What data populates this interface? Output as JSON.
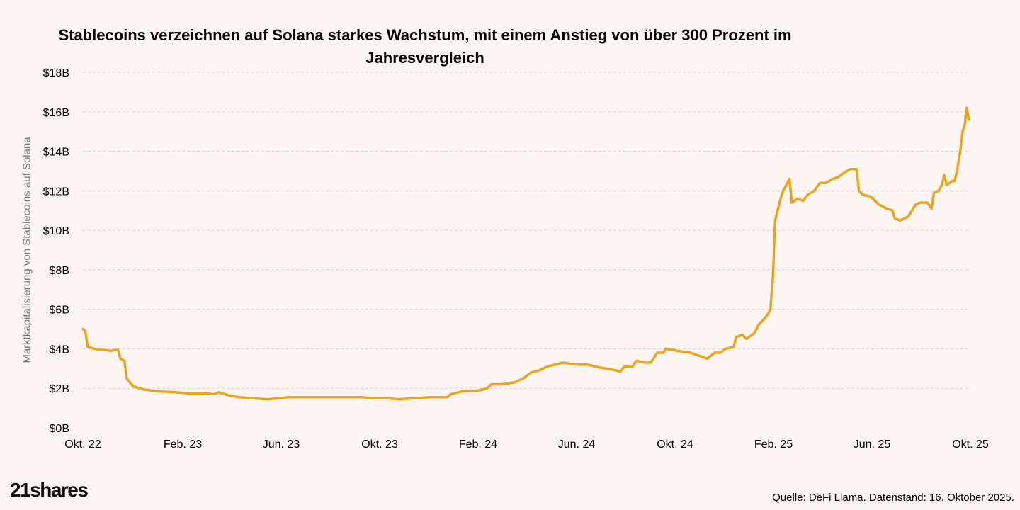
{
  "title_line1": "Stablecoins verzeichnen auf Solana starkes Wachstum, mit einem Anstieg von über 300 Prozent im",
  "title_line2": "Jahresvergleich",
  "logo_text": "21shares",
  "source_text": "Quelle: DeFi Llama. Datenstand: 16. Oktober 2025.",
  "colors": {
    "line": "#eaa520",
    "grid": "#d9d4d0",
    "background": "#fdf5f1"
  },
  "chart_data": {
    "type": "line",
    "title": "Stablecoins verzeichnen auf Solana starkes Wachstum, mit einem Anstieg von über 300 Prozent im Jahresvergleich",
    "xlabel": "",
    "ylabel": "Marktkapitalisierung von Stablecoins auf Solana",
    "unit": "USD billion",
    "ylim": [
      0,
      18
    ],
    "yticks": [
      0,
      2,
      4,
      6,
      8,
      10,
      12,
      14,
      16,
      18
    ],
    "ytick_labels": [
      "$0B",
      "$2B",
      "$4B",
      "$6B",
      "$8B",
      "$10B",
      "$12B",
      "$14B",
      "$16B",
      "$18B"
    ],
    "xtick_labels": [
      "Okt. 22",
      "Feb. 23",
      "Jun. 23",
      "Okt. 23",
      "Feb. 24",
      "Jun. 24",
      "Okt. 24",
      "Feb. 25",
      "Jun. 25",
      "Okt. 25"
    ],
    "grid": true,
    "legend": "none",
    "series": [
      {
        "name": "",
        "points": [
          [
            "2022-10-01",
            5.0
          ],
          [
            "2022-10-04",
            4.9
          ],
          [
            "2022-10-07",
            4.1
          ],
          [
            "2022-10-15",
            4.0
          ],
          [
            "2022-10-25",
            3.95
          ],
          [
            "2022-11-05",
            3.9
          ],
          [
            "2022-11-14",
            3.95
          ],
          [
            "2022-11-17",
            3.5
          ],
          [
            "2022-11-22",
            3.4
          ],
          [
            "2022-11-25",
            2.5
          ],
          [
            "2022-11-29",
            2.3
          ],
          [
            "2022-12-03",
            2.1
          ],
          [
            "2022-12-15",
            1.95
          ],
          [
            "2023-01-01",
            1.85
          ],
          [
            "2023-01-25",
            1.8
          ],
          [
            "2023-02-10",
            1.75
          ],
          [
            "2023-03-01",
            1.75
          ],
          [
            "2023-03-15",
            1.7
          ],
          [
            "2023-03-20",
            1.8
          ],
          [
            "2023-04-01",
            1.65
          ],
          [
            "2023-04-15",
            1.55
          ],
          [
            "2023-05-01",
            1.5
          ],
          [
            "2023-05-20",
            1.45
          ],
          [
            "2023-06-05",
            1.5
          ],
          [
            "2023-06-15",
            1.55
          ],
          [
            "2023-07-15",
            1.55
          ],
          [
            "2023-08-15",
            1.55
          ],
          [
            "2023-09-15",
            1.55
          ],
          [
            "2023-10-01",
            1.5
          ],
          [
            "2023-10-15",
            1.5
          ],
          [
            "2023-11-01",
            1.45
          ],
          [
            "2023-11-20",
            1.5
          ],
          [
            "2023-12-10",
            1.55
          ],
          [
            "2024-01-01",
            1.55
          ],
          [
            "2024-01-05",
            1.7
          ],
          [
            "2024-01-20",
            1.85
          ],
          [
            "2024-02-01",
            1.85
          ],
          [
            "2024-02-10",
            1.9
          ],
          [
            "2024-02-20",
            2.0
          ],
          [
            "2024-02-25",
            2.2
          ],
          [
            "2024-03-10",
            2.2
          ],
          [
            "2024-03-25",
            2.3
          ],
          [
            "2024-04-05",
            2.5
          ],
          [
            "2024-04-15",
            2.8
          ],
          [
            "2024-04-25",
            2.9
          ],
          [
            "2024-05-05",
            3.1
          ],
          [
            "2024-05-15",
            3.2
          ],
          [
            "2024-05-25",
            3.3
          ],
          [
            "2024-06-10",
            3.2
          ],
          [
            "2024-06-25",
            3.2
          ],
          [
            "2024-07-10",
            3.05
          ],
          [
            "2024-07-25",
            2.95
          ],
          [
            "2024-08-05",
            2.85
          ],
          [
            "2024-08-10",
            3.1
          ],
          [
            "2024-08-20",
            3.1
          ],
          [
            "2024-08-25",
            3.4
          ],
          [
            "2024-09-05",
            3.3
          ],
          [
            "2024-09-12",
            3.3
          ],
          [
            "2024-09-20",
            3.8
          ],
          [
            "2024-09-28",
            3.8
          ],
          [
            "2024-10-01",
            4.0
          ],
          [
            "2024-10-15",
            3.9
          ],
          [
            "2024-11-01",
            3.8
          ],
          [
            "2024-11-15",
            3.6
          ],
          [
            "2024-11-22",
            3.5
          ],
          [
            "2024-12-01",
            3.8
          ],
          [
            "2024-12-08",
            3.8
          ],
          [
            "2024-12-15",
            4.0
          ],
          [
            "2024-12-25",
            4.1
          ],
          [
            "2024-12-28",
            4.6
          ],
          [
            "2025-01-05",
            4.7
          ],
          [
            "2025-01-10",
            4.5
          ],
          [
            "2025-01-20",
            4.8
          ],
          [
            "2025-01-25",
            5.2
          ],
          [
            "2025-02-01",
            5.5
          ],
          [
            "2025-02-05",
            5.7
          ],
          [
            "2025-02-09",
            6.0
          ],
          [
            "2025-02-12",
            7.5
          ],
          [
            "2025-02-15",
            10.5
          ],
          [
            "2025-02-18",
            11.0
          ],
          [
            "2025-02-21",
            11.5
          ],
          [
            "2025-02-25",
            12.0
          ],
          [
            "2025-03-01",
            12.3
          ],
          [
            "2025-03-05",
            12.6
          ],
          [
            "2025-03-08",
            11.4
          ],
          [
            "2025-03-15",
            11.6
          ],
          [
            "2025-03-22",
            11.5
          ],
          [
            "2025-03-28",
            11.8
          ],
          [
            "2025-04-05",
            12.0
          ],
          [
            "2025-04-12",
            12.4
          ],
          [
            "2025-04-20",
            12.4
          ],
          [
            "2025-04-28",
            12.6
          ],
          [
            "2025-05-05",
            12.7
          ],
          [
            "2025-05-12",
            12.9
          ],
          [
            "2025-05-20",
            13.1
          ],
          [
            "2025-05-28",
            13.1
          ],
          [
            "2025-05-31",
            12.0
          ],
          [
            "2025-06-05",
            11.8
          ],
          [
            "2025-06-15",
            11.7
          ],
          [
            "2025-06-25",
            11.3
          ],
          [
            "2025-07-05",
            11.1
          ],
          [
            "2025-07-12",
            11.0
          ],
          [
            "2025-07-15",
            10.6
          ],
          [
            "2025-07-22",
            10.5
          ],
          [
            "2025-08-01",
            10.7
          ],
          [
            "2025-08-10",
            11.3
          ],
          [
            "2025-08-16",
            11.4
          ],
          [
            "2025-08-25",
            11.4
          ],
          [
            "2025-08-30",
            11.1
          ],
          [
            "2025-09-02",
            11.9
          ],
          [
            "2025-09-08",
            12.0
          ],
          [
            "2025-09-12",
            12.3
          ],
          [
            "2025-09-15",
            12.8
          ],
          [
            "2025-09-18",
            12.3
          ],
          [
            "2025-09-22",
            12.4
          ],
          [
            "2025-09-25",
            12.5
          ],
          [
            "2025-09-28",
            12.5
          ],
          [
            "2025-10-01",
            13.0
          ],
          [
            "2025-10-05",
            14.0
          ],
          [
            "2025-10-08",
            15.0
          ],
          [
            "2025-10-11",
            15.4
          ],
          [
            "2025-10-13",
            16.2
          ],
          [
            "2025-10-15",
            15.8
          ],
          [
            "2025-10-16",
            15.6
          ]
        ]
      }
    ]
  }
}
